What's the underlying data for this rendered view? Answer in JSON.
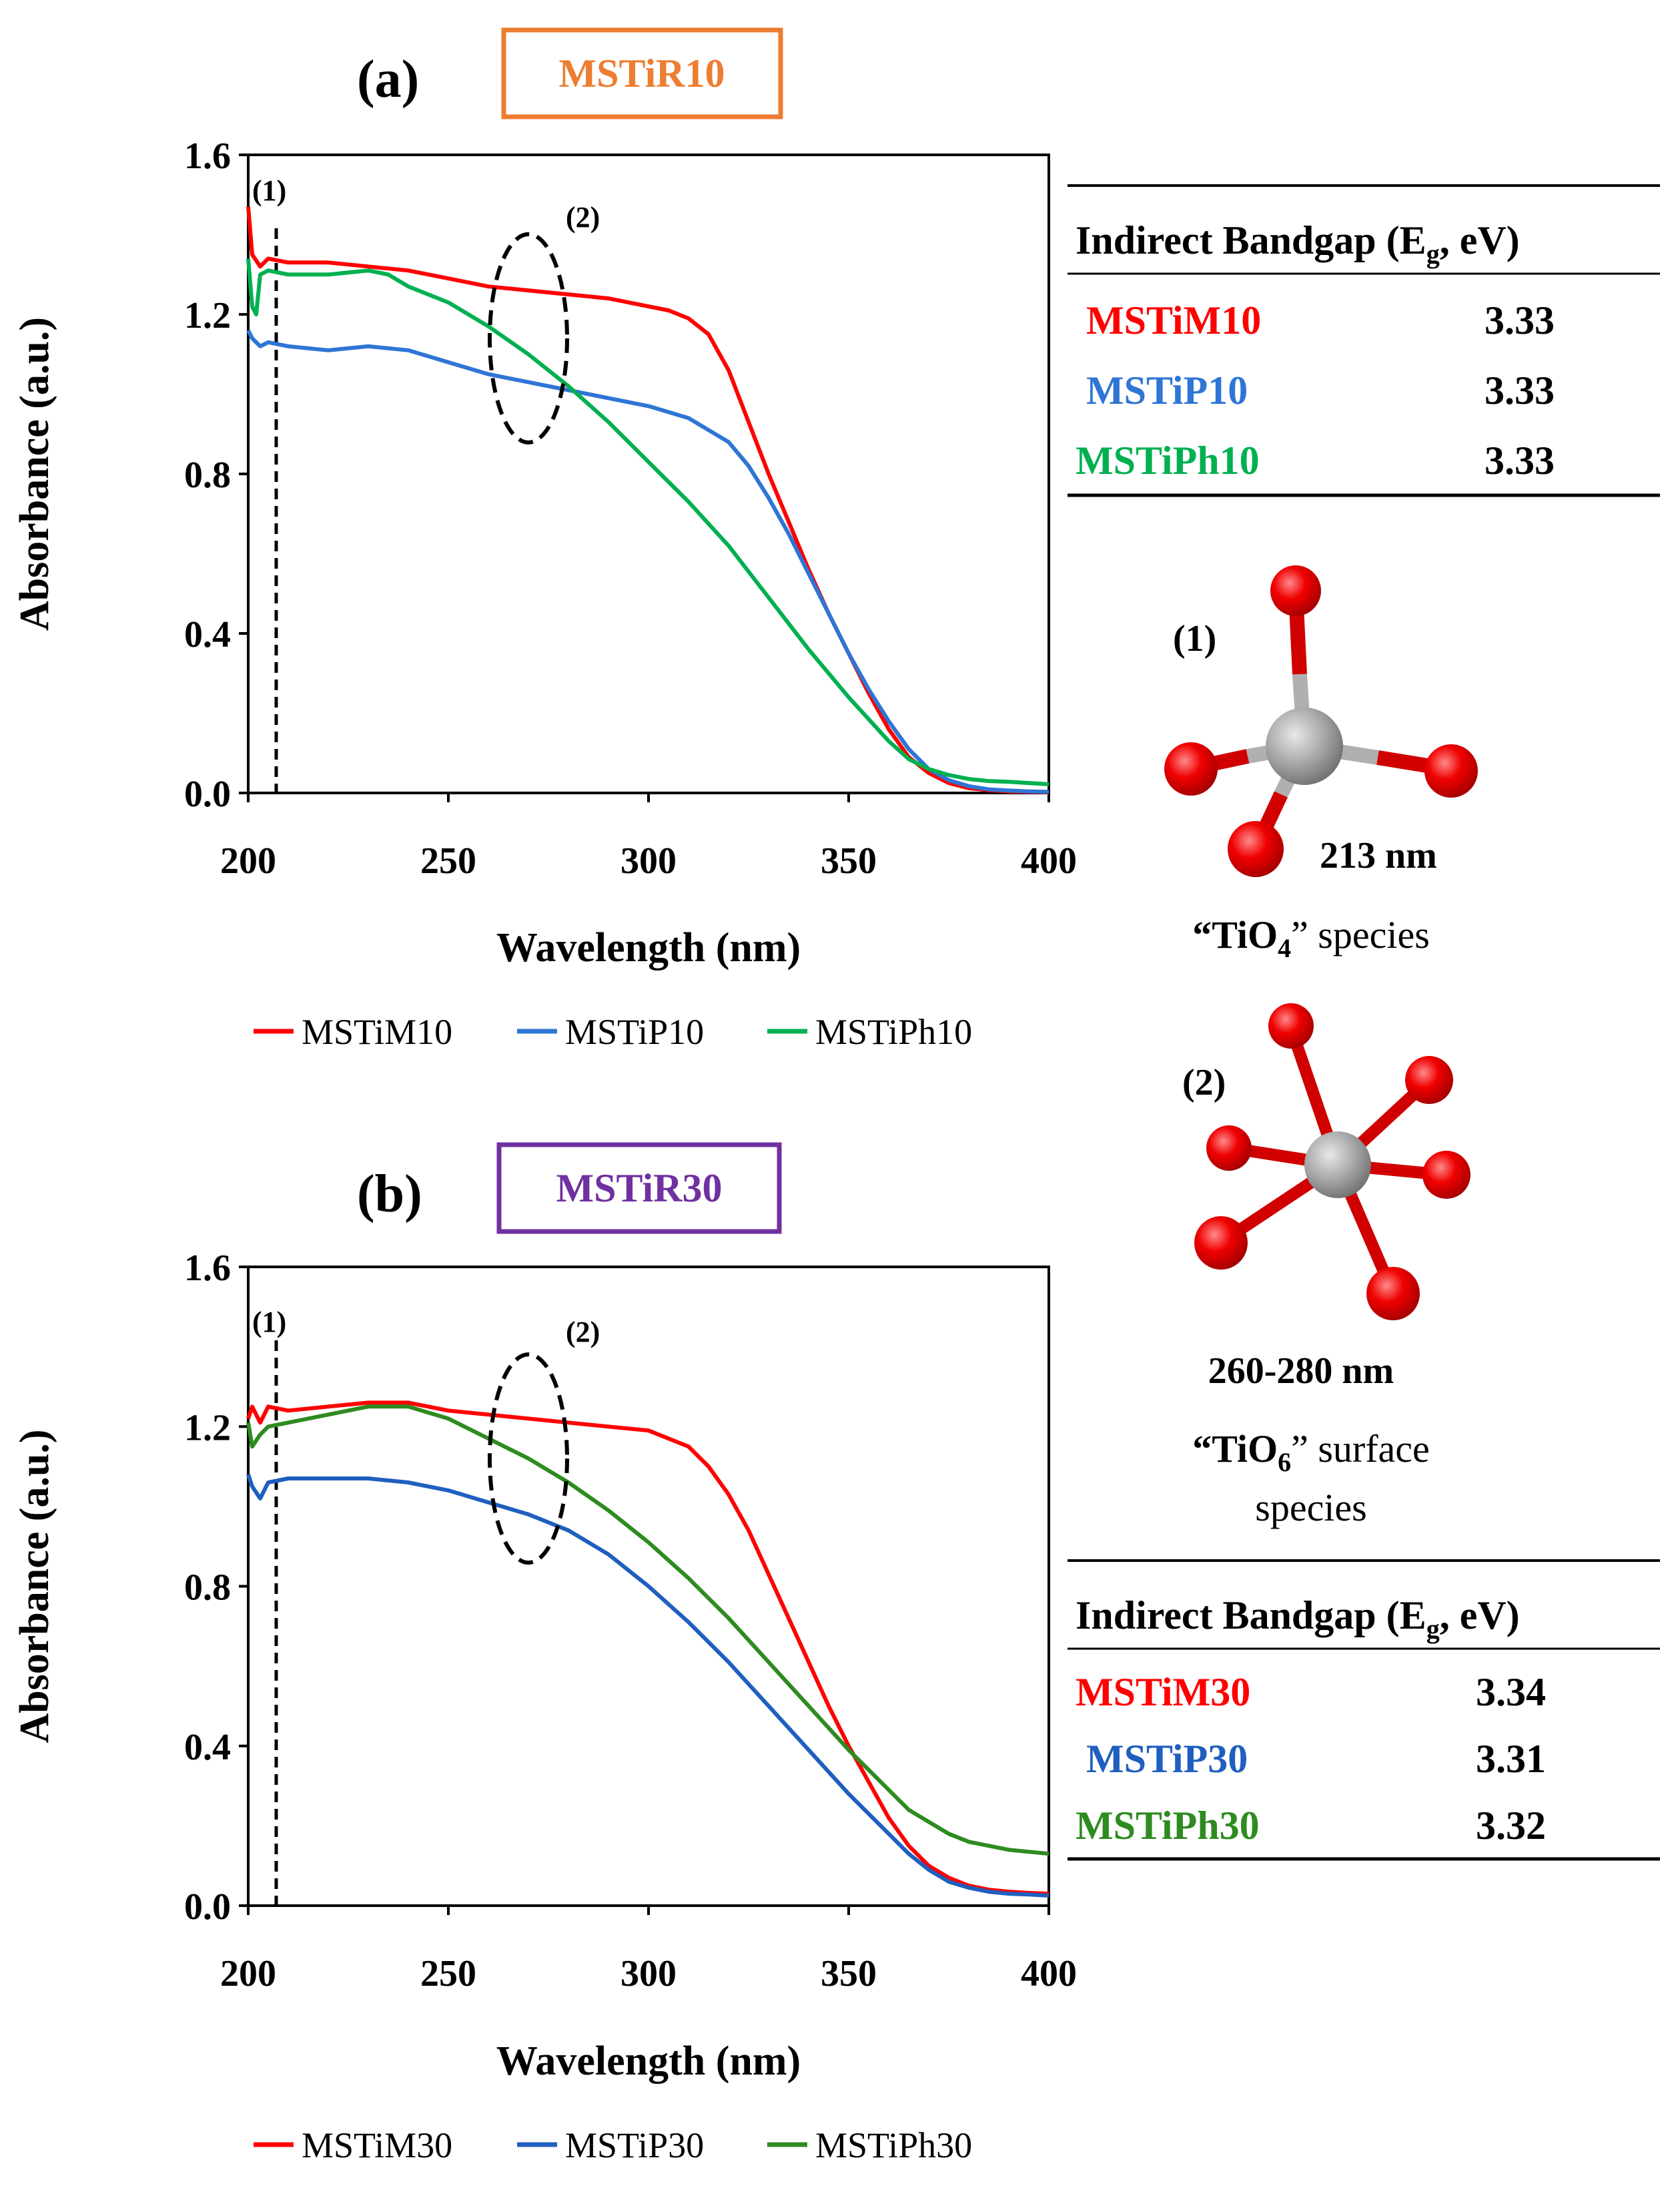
{
  "figure": {
    "panels": [
      {
        "letter": "(a)",
        "tag": "MSTiR10",
        "tag_color": "#ED7D31",
        "annot1": "(1)",
        "annot2": "(2)",
        "legend": [
          "MSTiM10",
          "MSTiP10",
          "MSTiPh10"
        ],
        "table": {
          "header_main": "Indirect Bandgap (E",
          "header_sub": "g",
          "header_tail": ", eV)",
          "rows": [
            {
              "sample": "MSTiM10",
              "value": "3.33",
              "color": "#FF0000"
            },
            {
              "sample": "MSTiP10",
              "value": "3.33",
              "color": "#2E75D6"
            },
            {
              "sample": "MSTiPh10",
              "value": "3.33",
              "color": "#00B050"
            }
          ]
        }
      },
      {
        "letter": "(b)",
        "tag": "MSTiR30",
        "tag_color": "#7030A0",
        "annot1": "(1)",
        "annot2": "(2)",
        "legend": [
          "MSTiM30",
          "MSTiP30",
          "MSTiPh30"
        ],
        "table": {
          "header_main": "Indirect Bandgap (E",
          "header_sub": "g",
          "header_tail": ", eV)",
          "rows": [
            {
              "sample": "MSTiM30",
              "value": "3.34",
              "color": "#FF0000"
            },
            {
              "sample": "MSTiP30",
              "value": "3.31",
              "color": "#1F5FBF"
            },
            {
              "sample": "MSTiPh30",
              "value": "3.32",
              "color": "#2E8B20"
            }
          ]
        }
      }
    ],
    "species": [
      {
        "label": "(1)",
        "wavelength": "213 nm",
        "name_pre": "“TiO",
        "name_sub": "4",
        "name_post": "” species",
        "name_line2": ""
      },
      {
        "label": "(2)",
        "wavelength": "260-280 nm",
        "name_pre": "“TiO",
        "name_sub": "6",
        "name_post": "” surface",
        "name_line2": "species"
      }
    ],
    "colors": {
      "ti_atom": "#A6A6A6",
      "o_atom": "#E00000",
      "bond_ti": "#B0B0B0",
      "bond_o": "#D00000"
    }
  },
  "chart_data": [
    {
      "type": "line",
      "title": "(a) MSTiR10",
      "xlabel": "Wavelength (nm)",
      "ylabel": "Absorbance (a.u.)",
      "xlim": [
        200,
        400
      ],
      "ylim": [
        0,
        1.6
      ],
      "xticks": [
        200,
        250,
        300,
        350,
        400
      ],
      "yticks": [
        "0.0",
        "0.4",
        "0.8",
        "1.2",
        "1.6"
      ],
      "marker_line_x": 207,
      "ellipse_center": [
        270,
        1.14
      ],
      "series": [
        {
          "name": "MSTiM10",
          "color": "#FF0000",
          "x": [
            200,
            201,
            203,
            205,
            210,
            220,
            230,
            240,
            250,
            260,
            270,
            280,
            290,
            300,
            305,
            310,
            315,
            320,
            325,
            330,
            335,
            340,
            345,
            350,
            355,
            360,
            365,
            370,
            375,
            380,
            385,
            390,
            395,
            400
          ],
          "y": [
            1.47,
            1.35,
            1.32,
            1.34,
            1.33,
            1.33,
            1.32,
            1.31,
            1.29,
            1.27,
            1.26,
            1.25,
            1.24,
            1.22,
            1.21,
            1.19,
            1.15,
            1.06,
            0.93,
            0.8,
            0.68,
            0.56,
            0.45,
            0.35,
            0.25,
            0.16,
            0.09,
            0.05,
            0.025,
            0.012,
            0.007,
            0.004,
            0.003,
            0.002
          ]
        },
        {
          "name": "MSTiP10",
          "color": "#2E75D6",
          "x": [
            200,
            201,
            203,
            205,
            210,
            220,
            230,
            240,
            250,
            260,
            270,
            280,
            290,
            300,
            310,
            320,
            325,
            330,
            335,
            340,
            345,
            350,
            355,
            360,
            365,
            370,
            375,
            380,
            385,
            390,
            395,
            400
          ],
          "y": [
            1.16,
            1.14,
            1.12,
            1.13,
            1.12,
            1.11,
            1.12,
            1.11,
            1.08,
            1.05,
            1.03,
            1.01,
            0.99,
            0.97,
            0.94,
            0.88,
            0.82,
            0.74,
            0.65,
            0.55,
            0.45,
            0.35,
            0.26,
            0.18,
            0.11,
            0.06,
            0.032,
            0.017,
            0.009,
            0.006,
            0.004,
            0.003
          ]
        },
        {
          "name": "MSTiPh10",
          "color": "#00B050",
          "x": [
            200,
            201,
            202,
            203,
            205,
            210,
            220,
            230,
            235,
            240,
            250,
            260,
            270,
            280,
            290,
            300,
            310,
            320,
            330,
            340,
            350,
            360,
            365,
            370,
            375,
            380,
            385,
            390,
            395,
            400
          ],
          "y": [
            1.34,
            1.22,
            1.2,
            1.3,
            1.31,
            1.3,
            1.3,
            1.31,
            1.3,
            1.27,
            1.23,
            1.17,
            1.1,
            1.02,
            0.93,
            0.83,
            0.73,
            0.62,
            0.49,
            0.36,
            0.24,
            0.13,
            0.085,
            0.06,
            0.045,
            0.035,
            0.03,
            0.028,
            0.025,
            0.022
          ]
        }
      ]
    },
    {
      "type": "line",
      "title": "(b) MSTiR30",
      "xlabel": "Wavelength (nm)",
      "ylabel": "Absorbance (a.u.)",
      "xlim": [
        200,
        400
      ],
      "ylim": [
        0,
        1.6
      ],
      "xticks": [
        200,
        250,
        300,
        350,
        400
      ],
      "yticks": [
        "0.0",
        "0.4",
        "0.8",
        "1.2",
        "1.6"
      ],
      "marker_line_x": 207,
      "ellipse_center": [
        270,
        1.12
      ],
      "series": [
        {
          "name": "MSTiM30",
          "color": "#FF0000",
          "x": [
            200,
            201,
            203,
            205,
            210,
            220,
            230,
            240,
            250,
            260,
            270,
            280,
            290,
            300,
            305,
            310,
            315,
            320,
            325,
            330,
            335,
            340,
            345,
            350,
            355,
            360,
            365,
            370,
            375,
            380,
            385,
            390,
            395,
            400
          ],
          "y": [
            1.22,
            1.25,
            1.21,
            1.25,
            1.24,
            1.25,
            1.26,
            1.26,
            1.24,
            1.23,
            1.22,
            1.21,
            1.2,
            1.19,
            1.17,
            1.15,
            1.1,
            1.03,
            0.94,
            0.83,
            0.72,
            0.61,
            0.5,
            0.4,
            0.31,
            0.22,
            0.15,
            0.1,
            0.07,
            0.05,
            0.04,
            0.035,
            0.032,
            0.03
          ]
        },
        {
          "name": "MSTiP30",
          "color": "#1F5FBF",
          "x": [
            200,
            201,
            203,
            205,
            210,
            220,
            230,
            240,
            250,
            260,
            270,
            280,
            290,
            300,
            310,
            320,
            330,
            340,
            350,
            360,
            365,
            370,
            375,
            380,
            385,
            390,
            395,
            400
          ],
          "y": [
            1.08,
            1.05,
            1.02,
            1.06,
            1.07,
            1.07,
            1.07,
            1.06,
            1.04,
            1.01,
            0.98,
            0.94,
            0.88,
            0.8,
            0.71,
            0.61,
            0.5,
            0.39,
            0.28,
            0.18,
            0.13,
            0.09,
            0.06,
            0.045,
            0.035,
            0.03,
            0.028,
            0.025
          ]
        },
        {
          "name": "MSTiPh30",
          "color": "#2E8B20",
          "x": [
            200,
            201,
            203,
            205,
            210,
            220,
            230,
            240,
            250,
            260,
            270,
            280,
            290,
            300,
            310,
            320,
            330,
            340,
            350,
            360,
            365,
            370,
            375,
            380,
            385,
            390,
            395,
            400
          ],
          "y": [
            1.21,
            1.15,
            1.18,
            1.2,
            1.21,
            1.23,
            1.25,
            1.25,
            1.22,
            1.17,
            1.12,
            1.06,
            0.99,
            0.91,
            0.82,
            0.72,
            0.61,
            0.5,
            0.39,
            0.29,
            0.24,
            0.21,
            0.18,
            0.16,
            0.15,
            0.14,
            0.135,
            0.13
          ]
        }
      ]
    }
  ]
}
